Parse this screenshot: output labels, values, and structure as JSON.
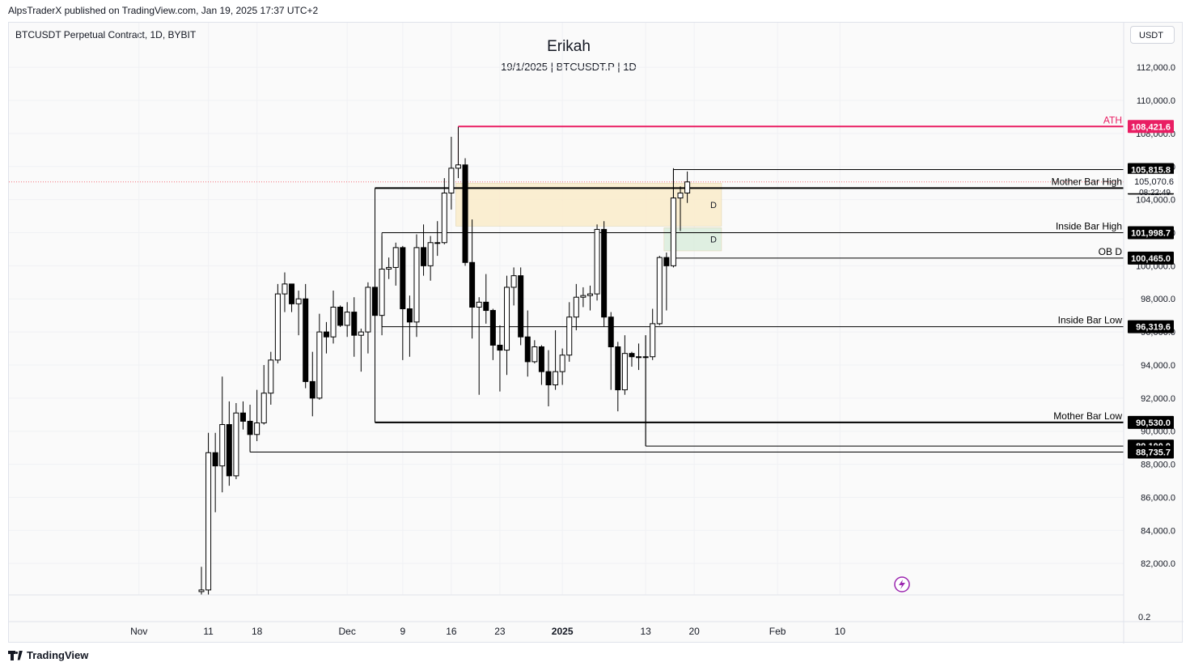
{
  "header": {
    "publisher_line": "AlpsTraderX published on TradingView.com, Jan 19, 2025 17:37 UTC+2"
  },
  "symbol_line": "BTCUSDT Perpetual Contract, 1D, BYBIT",
  "currency_button": "USDT",
  "footer_brand": "TradingView",
  "chart_data": {
    "type": "candlestick",
    "title": "Erikah",
    "subtitle": "19/1/2025 | BTCUSDT.P | 1D",
    "ylim": [
      80100,
      114700
    ],
    "y_ticks": [
      82000,
      84000,
      86000,
      88000,
      90000,
      92000,
      94000,
      96000,
      98000,
      100000,
      102000,
      104000,
      106000,
      108000,
      110000,
      112000
    ],
    "y_tick_labels": [
      "82,000.0",
      "84,000.0",
      "86,000.0",
      "88,000.0",
      "90,000.0",
      "92,000.0",
      "94,000.0",
      "96,000.0",
      "98,000.0",
      "100,000.0",
      "102,000.0",
      "104,000.0",
      "106,000.0",
      "108,000.0",
      "110,000.0",
      "112,000.0"
    ],
    "x_ticks": [
      {
        "label": "Nov",
        "date": "2024-11-01"
      },
      {
        "label": "11",
        "date": "2024-11-11"
      },
      {
        "label": "18",
        "date": "2024-11-18"
      },
      {
        "label": "Dec",
        "date": "2024-12-01"
      },
      {
        "label": "9",
        "date": "2024-12-09"
      },
      {
        "label": "16",
        "date": "2024-12-16"
      },
      {
        "label": "23",
        "date": "2024-12-23"
      },
      {
        "label": "2025",
        "date": "2025-01-01"
      },
      {
        "label": "13",
        "date": "2025-01-13"
      },
      {
        "label": "20",
        "date": "2025-01-20"
      },
      {
        "label": "Feb",
        "date": "2025-02-01"
      },
      {
        "label": "10",
        "date": "2025-02-10"
      }
    ],
    "bottom_pane_label": "0.2",
    "current_price": {
      "value": "105,070.6",
      "countdown": "08:22:49"
    },
    "candles": [
      {
        "date": "2024-11-10",
        "o": 80300,
        "h": 81800,
        "l": 80100,
        "c": 80400
      },
      {
        "date": "2024-11-11",
        "o": 80400,
        "h": 89900,
        "l": 80100,
        "c": 88700
      },
      {
        "date": "2024-11-12",
        "o": 88700,
        "h": 89900,
        "l": 85100,
        "c": 87900
      },
      {
        "date": "2024-11-13",
        "o": 87900,
        "h": 93300,
        "l": 86300,
        "c": 90400
      },
      {
        "date": "2024-11-14",
        "o": 90400,
        "h": 91800,
        "l": 86700,
        "c": 87300
      },
      {
        "date": "2024-11-15",
        "o": 87300,
        "h": 91700,
        "l": 87100,
        "c": 91100
      },
      {
        "date": "2024-11-16",
        "o": 91100,
        "h": 91800,
        "l": 90100,
        "c": 90600
      },
      {
        "date": "2024-11-17",
        "o": 90600,
        "h": 91600,
        "l": 88800,
        "c": 89800
      },
      {
        "date": "2024-11-18",
        "o": 89800,
        "h": 92500,
        "l": 89400,
        "c": 90500
      },
      {
        "date": "2024-11-19",
        "o": 90500,
        "h": 94000,
        "l": 90400,
        "c": 92300
      },
      {
        "date": "2024-11-20",
        "o": 92300,
        "h": 94800,
        "l": 91600,
        "c": 94300
      },
      {
        "date": "2024-11-21",
        "o": 94300,
        "h": 98900,
        "l": 94100,
        "c": 98300
      },
      {
        "date": "2024-11-22",
        "o": 98300,
        "h": 99600,
        "l": 97200,
        "c": 98900
      },
      {
        "date": "2024-11-23",
        "o": 98900,
        "h": 98900,
        "l": 97200,
        "c": 97700
      },
      {
        "date": "2024-11-24",
        "o": 97700,
        "h": 98500,
        "l": 95800,
        "c": 98000
      },
      {
        "date": "2024-11-25",
        "o": 98000,
        "h": 98900,
        "l": 92600,
        "c": 93000
      },
      {
        "date": "2024-11-26",
        "o": 93000,
        "h": 94800,
        "l": 90900,
        "c": 92000
      },
      {
        "date": "2024-11-27",
        "o": 92000,
        "h": 97100,
        "l": 91900,
        "c": 96000
      },
      {
        "date": "2024-11-28",
        "o": 96000,
        "h": 96600,
        "l": 94700,
        "c": 95700
      },
      {
        "date": "2024-11-29",
        "o": 95700,
        "h": 98500,
        "l": 95300,
        "c": 97500
      },
      {
        "date": "2024-11-30",
        "o": 97500,
        "h": 97600,
        "l": 96300,
        "c": 96400
      },
      {
        "date": "2024-12-01",
        "o": 96400,
        "h": 97800,
        "l": 95700,
        "c": 97200
      },
      {
        "date": "2024-12-02",
        "o": 97200,
        "h": 98100,
        "l": 94500,
        "c": 95800
      },
      {
        "date": "2024-12-03",
        "o": 95800,
        "h": 96200,
        "l": 93600,
        "c": 96000
      },
      {
        "date": "2024-12-04",
        "o": 96000,
        "h": 99000,
        "l": 94700,
        "c": 98700
      },
      {
        "date": "2024-12-05",
        "o": 98700,
        "h": 104000,
        "l": 91200,
        "c": 97000
      },
      {
        "date": "2024-12-06",
        "o": 97000,
        "h": 101800,
        "l": 95800,
        "c": 99800
      },
      {
        "date": "2024-12-07",
        "o": 99800,
        "h": 100500,
        "l": 99200,
        "c": 99900
      },
      {
        "date": "2024-12-08",
        "o": 99900,
        "h": 101400,
        "l": 98800,
        "c": 101100
      },
      {
        "date": "2024-12-09",
        "o": 101100,
        "h": 101200,
        "l": 94300,
        "c": 97400
      },
      {
        "date": "2024-12-10",
        "o": 97400,
        "h": 98200,
        "l": 94500,
        "c": 96600
      },
      {
        "date": "2024-12-11",
        "o": 96600,
        "h": 101900,
        "l": 95700,
        "c": 101100
      },
      {
        "date": "2024-12-12",
        "o": 101100,
        "h": 102500,
        "l": 99400,
        "c": 100000
      },
      {
        "date": "2024-12-13",
        "o": 100000,
        "h": 101800,
        "l": 99100,
        "c": 101400
      },
      {
        "date": "2024-12-14",
        "o": 101400,
        "h": 102700,
        "l": 100600,
        "c": 101400
      },
      {
        "date": "2024-12-15",
        "o": 101400,
        "h": 105300,
        "l": 101300,
        "c": 104400
      },
      {
        "date": "2024-12-16",
        "o": 104400,
        "h": 107800,
        "l": 103400,
        "c": 105900
      },
      {
        "date": "2024-12-17",
        "o": 105900,
        "h": 108400,
        "l": 105300,
        "c": 106100
      },
      {
        "date": "2024-12-18",
        "o": 106100,
        "h": 106500,
        "l": 100000,
        "c": 100200
      },
      {
        "date": "2024-12-19",
        "o": 100200,
        "h": 102800,
        "l": 95600,
        "c": 97500
      },
      {
        "date": "2024-12-20",
        "o": 97500,
        "h": 98100,
        "l": 92200,
        "c": 97800
      },
      {
        "date": "2024-12-21",
        "o": 97800,
        "h": 99500,
        "l": 96500,
        "c": 97300
      },
      {
        "date": "2024-12-22",
        "o": 97300,
        "h": 97400,
        "l": 94300,
        "c": 95200
      },
      {
        "date": "2024-12-23",
        "o": 95200,
        "h": 96400,
        "l": 92400,
        "c": 94900
      },
      {
        "date": "2024-12-24",
        "o": 94900,
        "h": 99400,
        "l": 93400,
        "c": 98700
      },
      {
        "date": "2024-12-25",
        "o": 98700,
        "h": 99900,
        "l": 97600,
        "c": 99400
      },
      {
        "date": "2024-12-26",
        "o": 99400,
        "h": 99900,
        "l": 95200,
        "c": 95700
      },
      {
        "date": "2024-12-27",
        "o": 95700,
        "h": 97300,
        "l": 93300,
        "c": 94200
      },
      {
        "date": "2024-12-28",
        "o": 94200,
        "h": 95500,
        "l": 94100,
        "c": 95100
      },
      {
        "date": "2024-12-29",
        "o": 95100,
        "h": 95200,
        "l": 92800,
        "c": 93600
      },
      {
        "date": "2024-12-30",
        "o": 93600,
        "h": 94900,
        "l": 91500,
        "c": 92800
      },
      {
        "date": "2024-12-31",
        "o": 92800,
        "h": 96100,
        "l": 92500,
        "c": 93600
      },
      {
        "date": "2025-01-01",
        "o": 93600,
        "h": 95000,
        "l": 92800,
        "c": 94600
      },
      {
        "date": "2025-01-02",
        "o": 94600,
        "h": 97800,
        "l": 94200,
        "c": 96900
      },
      {
        "date": "2025-01-03",
        "o": 96900,
        "h": 98900,
        "l": 96100,
        "c": 98100
      },
      {
        "date": "2025-01-04",
        "o": 98100,
        "h": 98700,
        "l": 97500,
        "c": 98200
      },
      {
        "date": "2025-01-05",
        "o": 98200,
        "h": 98800,
        "l": 97300,
        "c": 98300
      },
      {
        "date": "2025-01-06",
        "o": 98300,
        "h": 102500,
        "l": 97900,
        "c": 102200
      },
      {
        "date": "2025-01-07",
        "o": 102200,
        "h": 102700,
        "l": 96300,
        "c": 96900
      },
      {
        "date": "2025-01-08",
        "o": 96900,
        "h": 97200,
        "l": 92500,
        "c": 95100
      },
      {
        "date": "2025-01-09",
        "o": 95100,
        "h": 95400,
        "l": 91200,
        "c": 92500
      },
      {
        "date": "2025-01-10",
        "o": 92500,
        "h": 95800,
        "l": 92200,
        "c": 94700
      },
      {
        "date": "2025-01-11",
        "o": 94700,
        "h": 94800,
        "l": 93900,
        "c": 94500
      },
      {
        "date": "2025-01-12",
        "o": 94500,
        "h": 95300,
        "l": 93700,
        "c": 94500
      },
      {
        "date": "2025-01-13",
        "o": 94500,
        "h": 95800,
        "l": 89100,
        "c": 94500
      },
      {
        "date": "2025-01-14",
        "o": 94500,
        "h": 97400,
        "l": 94300,
        "c": 96500
      },
      {
        "date": "2025-01-15",
        "o": 96500,
        "h": 100600,
        "l": 96400,
        "c": 100500
      },
      {
        "date": "2025-01-16",
        "o": 100500,
        "h": 100800,
        "l": 97300,
        "c": 100000
      },
      {
        "date": "2025-01-17",
        "o": 100000,
        "h": 105900,
        "l": 99900,
        "c": 104100
      },
      {
        "date": "2025-01-18",
        "o": 104100,
        "h": 104800,
        "l": 102100,
        "c": 104400
      },
      {
        "date": "2025-01-19",
        "o": 104400,
        "h": 105700,
        "l": 103800,
        "c": 105070.6
      }
    ],
    "levels": [
      {
        "name": "ATH",
        "value": 108421.6,
        "label": "ATH",
        "price_label": "108,421.6",
        "color": "#e91e63",
        "from": "2024-12-17"
      },
      {
        "name": "high",
        "value": 105815.8,
        "label": "",
        "price_label": "105,815.8",
        "color": "#000000",
        "from": "2025-01-17"
      },
      {
        "name": "mother-bar-high",
        "value": 104698.8,
        "label": "Mother Bar High",
        "price_label": "104,698.8",
        "color": "#000000",
        "from": "2024-12-05"
      },
      {
        "name": "inside-bar-high",
        "value": 101998.7,
        "label": "Inside Bar High",
        "price_label": "101,998.7",
        "color": "#000000",
        "from": "2024-12-06"
      },
      {
        "name": "ob-d",
        "value": 100465.0,
        "label": "OB D",
        "price_label": "100,465.0",
        "color": "#000000",
        "from": "2025-01-17"
      },
      {
        "name": "inside-bar-low",
        "value": 96319.6,
        "label": "Inside Bar Low",
        "price_label": "96,319.6",
        "color": "#000000",
        "from": "2024-12-06"
      },
      {
        "name": "mother-bar-low",
        "value": 90530.0,
        "label": "Mother Bar Low",
        "price_label": "90,530.0",
        "color": "#000000",
        "from": "2024-12-05"
      },
      {
        "name": "low-89100",
        "value": 89100.0,
        "label": "",
        "price_label": "89,100.0",
        "color": "#000000",
        "from": "2025-01-13"
      },
      {
        "name": "low-88735",
        "value": 88735.7,
        "label": "",
        "price_label": "88,735.7",
        "color": "#000000",
        "from": "2024-11-17"
      }
    ],
    "zones": [
      {
        "name": "supply-zone-d",
        "top": 105000,
        "bottom": 102400,
        "from": "2024-12-17",
        "to": "2025-01-23",
        "label": "D",
        "color": "#fbeccb"
      },
      {
        "name": "ob-zone-d",
        "top": 102300,
        "bottom": 100900,
        "from": "2025-01-16",
        "to": "2025-01-23",
        "label": "D",
        "color": "#dbeedd"
      }
    ]
  }
}
